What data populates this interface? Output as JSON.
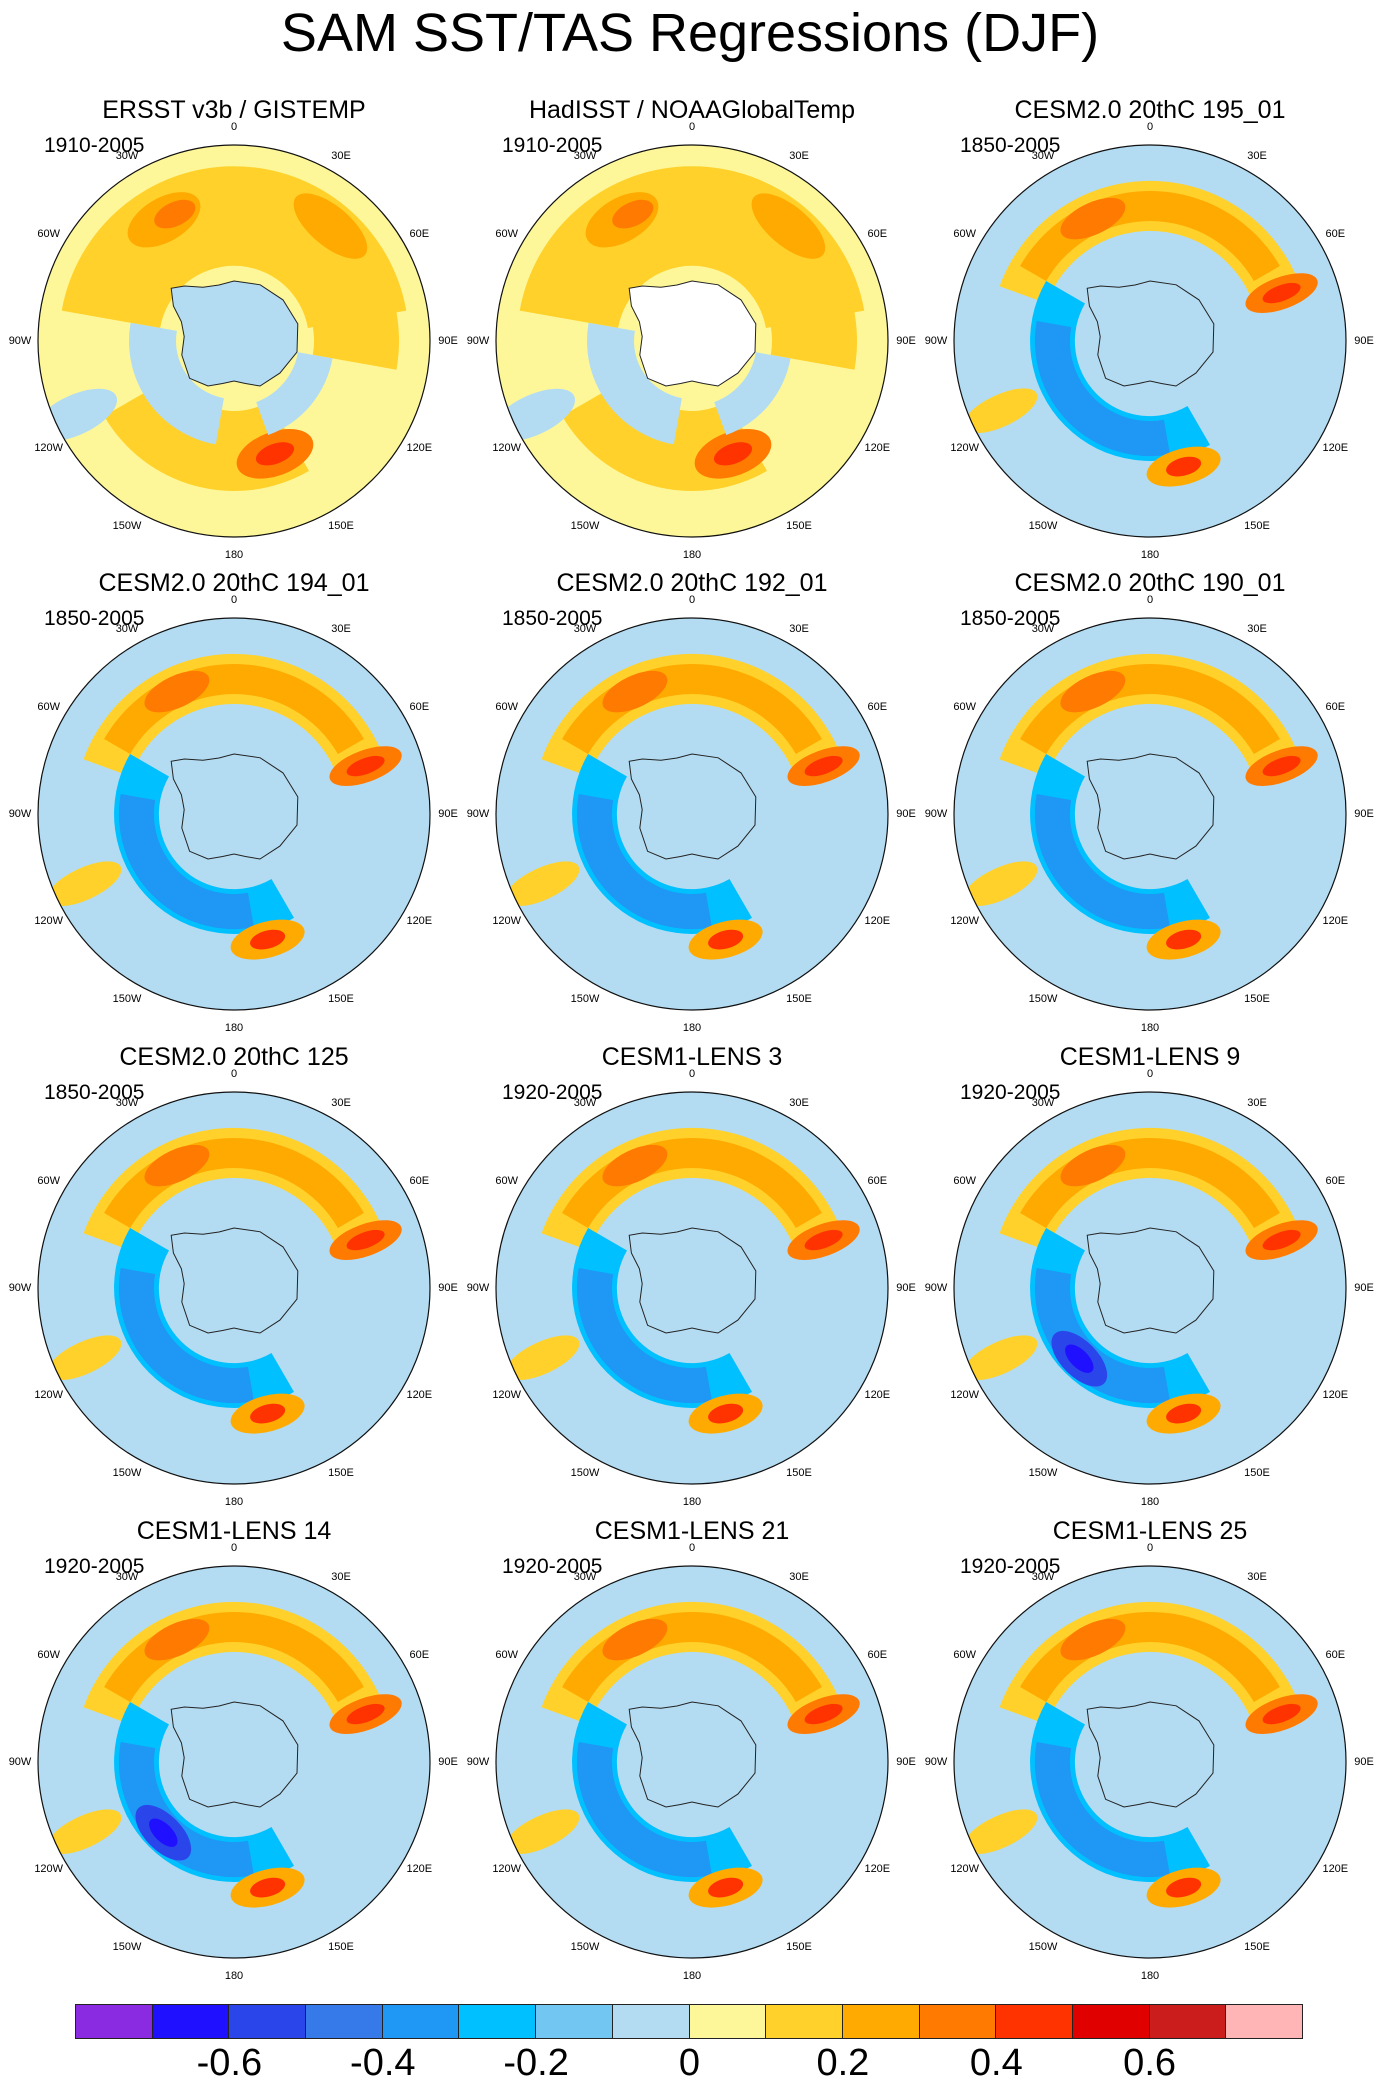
{
  "title": "SAM SST/TAS Regressions (DJF)",
  "lon_labels": [
    "0",
    "30E",
    "60E",
    "90E",
    "120E",
    "150E",
    "180",
    "150W",
    "120W",
    "90W",
    "60W",
    "30W"
  ],
  "panels": [
    {
      "title": "ERSST v3b / GISTEMP",
      "period": "1910-2005",
      "style": "obs1"
    },
    {
      "title": "HadISST / NOAAGlobalTemp",
      "period": "1910-2005",
      "style": "obs2"
    },
    {
      "title": "CESM2.0 20thC 195_01",
      "period": "1850-2005",
      "style": "model"
    },
    {
      "title": "CESM2.0 20thC 194_01",
      "period": "1850-2005",
      "style": "model"
    },
    {
      "title": "CESM2.0 20thC 192_01",
      "period": "1850-2005",
      "style": "model"
    },
    {
      "title": "CESM2.0 20thC 190_01",
      "period": "1850-2005",
      "style": "model"
    },
    {
      "title": "CESM2.0 20thC 125",
      "period": "1850-2005",
      "style": "model"
    },
    {
      "title": "CESM1-LENS 3",
      "period": "1920-2005",
      "style": "model"
    },
    {
      "title": "CESM1-LENS 9",
      "period": "1920-2005",
      "style": "model-strong"
    },
    {
      "title": "CESM1-LENS 14",
      "period": "1920-2005",
      "style": "model-strong"
    },
    {
      "title": "CESM1-LENS 21",
      "period": "1920-2005",
      "style": "model"
    },
    {
      "title": "CESM1-LENS 25",
      "period": "1920-2005",
      "style": "model"
    }
  ],
  "colorbar": {
    "colors": [
      "#8a2be2",
      "#1f10ff",
      "#2a46ea",
      "#3679e8",
      "#1e97f5",
      "#00c0ff",
      "#72c6f2",
      "#b3dcf2",
      "#fdf79a",
      "#ffd12a",
      "#ffaa00",
      "#ff7a00",
      "#ff3300",
      "#e00000",
      "#cc1d1d",
      "#ffb5b5"
    ],
    "labels": [
      "-0.6",
      "-0.4",
      "-0.2",
      "0",
      "0.2",
      "0.4",
      "0.6"
    ]
  }
}
